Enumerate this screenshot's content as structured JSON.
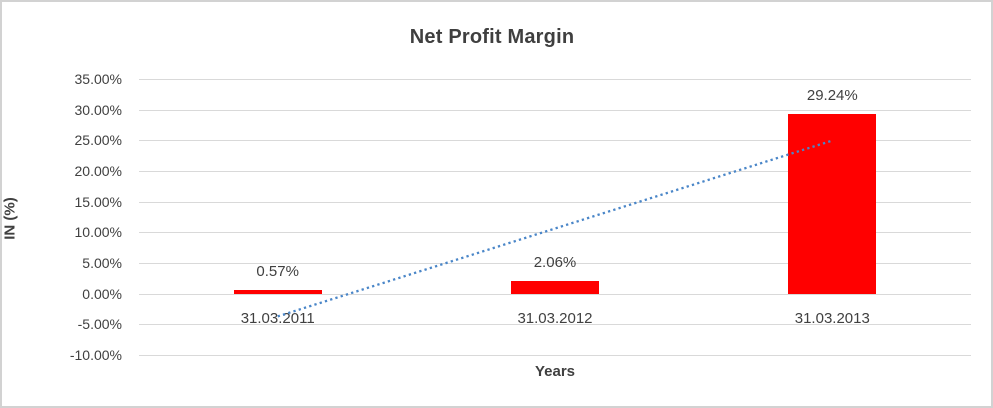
{
  "window": {
    "background": "#ffffff",
    "border_color": "#d2d2d2"
  },
  "chart_data": {
    "type": "bar",
    "title": "Net Profit Margin",
    "xlabel": "Years",
    "ylabel": "IN (%)",
    "categories": [
      "31.03.2011",
      "31.03.2012",
      "31.03.2013"
    ],
    "series": [
      {
        "name": "Net Profit Margin",
        "values": [
          0.57,
          2.06,
          29.24
        ]
      }
    ],
    "data_labels": [
      "0.57%",
      "2.06%",
      "29.24%"
    ],
    "y_ticks": [
      {
        "label": "35.00%",
        "value": 35
      },
      {
        "label": "30.00%",
        "value": 30
      },
      {
        "label": "25.00%",
        "value": 25
      },
      {
        "label": "20.00%",
        "value": 20
      },
      {
        "label": "15.00%",
        "value": 15
      },
      {
        "label": "10.00%",
        "value": 10
      },
      {
        "label": "5.00%",
        "value": 5
      },
      {
        "label": "0.00%",
        "value": 0
      },
      {
        "label": "-5.00%",
        "value": -5
      },
      {
        "label": "-10.00%",
        "value": -10
      }
    ],
    "ylim": [
      -10,
      35
    ],
    "grid": true,
    "legend": "none",
    "bar_color": "#ff0000",
    "gridline_color": "#d9d9d9",
    "text_color": "#404040",
    "trendline": {
      "type": "linear",
      "style": "dotted",
      "color": "#4a86c8",
      "start_value": -3.71,
      "end_value": 24.96
    }
  }
}
